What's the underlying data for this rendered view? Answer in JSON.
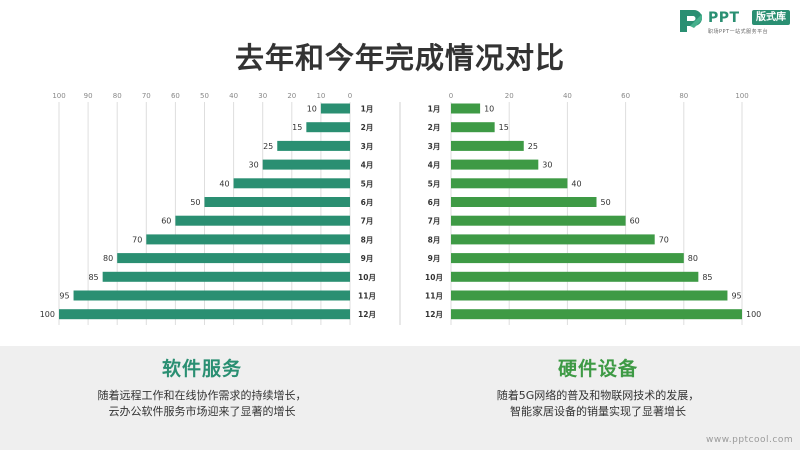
{
  "logo": {
    "text": "PPT",
    "badge": "版式库",
    "subtitle": "职场PPT一站式服务平台"
  },
  "title": "去年和今年完成情况对比",
  "chart_data": [
    {
      "type": "bar",
      "orientation": "horizontal",
      "direction": "right-to-left",
      "color": "#2a8f72",
      "categories": [
        "1月",
        "2月",
        "3月",
        "4月",
        "5月",
        "6月",
        "7月",
        "8月",
        "9月",
        "10月",
        "11月",
        "12月"
      ],
      "values": [
        10,
        15,
        25,
        30,
        40,
        50,
        60,
        70,
        80,
        85,
        95,
        100
      ],
      "xlim": [
        0,
        100
      ],
      "ticks": [
        "100",
        "90",
        "80",
        "70",
        "60",
        "50",
        "40",
        "30",
        "20",
        "10",
        "0"
      ],
      "grid": true
    },
    {
      "type": "bar",
      "orientation": "horizontal",
      "direction": "left-to-right",
      "color": "#3e9a45",
      "categories": [
        "1月",
        "2月",
        "3月",
        "4月",
        "5月",
        "6月",
        "7月",
        "8月",
        "9月",
        "10月",
        "11月",
        "12月"
      ],
      "values": [
        10,
        15,
        25,
        30,
        40,
        50,
        60,
        70,
        80,
        85,
        95,
        100
      ],
      "xlim": [
        0,
        100
      ],
      "ticks": [
        "0",
        "20",
        "40",
        "60",
        "80",
        "100"
      ],
      "grid": true
    }
  ],
  "panels": {
    "left": {
      "title": "软件服务",
      "line1": "随着远程工作和在线协作需求的持续增长，",
      "line2": "云办公软件服务市场迎来了显著的增长"
    },
    "right": {
      "title": "硬件设备",
      "line1": "随着5G网络的普及和物联网技术的发展，",
      "line2": "智能家居设备的销量实现了显著增长"
    }
  },
  "site": "www.pptcool.com"
}
